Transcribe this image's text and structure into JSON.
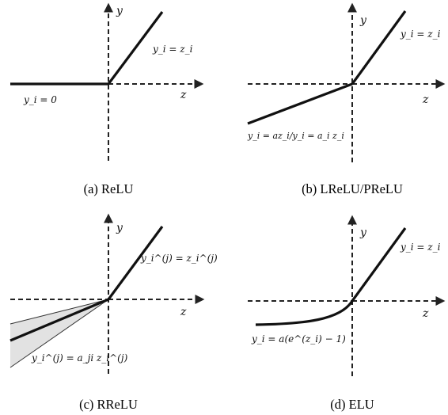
{
  "panels": [
    {
      "caption": "(a) ReLU",
      "y_label": "y",
      "z_label": "z",
      "formula_upper": "y_i = z_i",
      "formula_lower": "y_i = 0"
    },
    {
      "caption": "(b) LReLU/PReLU",
      "y_label": "y",
      "z_label": "z",
      "formula_upper": "y_i = z_i",
      "formula_lower": "y_i = az_i/y_i = a_i z_i"
    },
    {
      "caption": "(c) RReLU",
      "y_label": "y",
      "z_label": "z",
      "formula_upper": "y_i^(j) = z_i^(j)",
      "formula_lower": "y_i^(j) = a_ji z_i^(j)"
    },
    {
      "caption": "(d) ELU",
      "y_label": "y",
      "z_label": "z",
      "formula_upper": "y_i = z_i",
      "formula_lower": "y_i = a(e^(z_i) − 1)"
    }
  ]
}
